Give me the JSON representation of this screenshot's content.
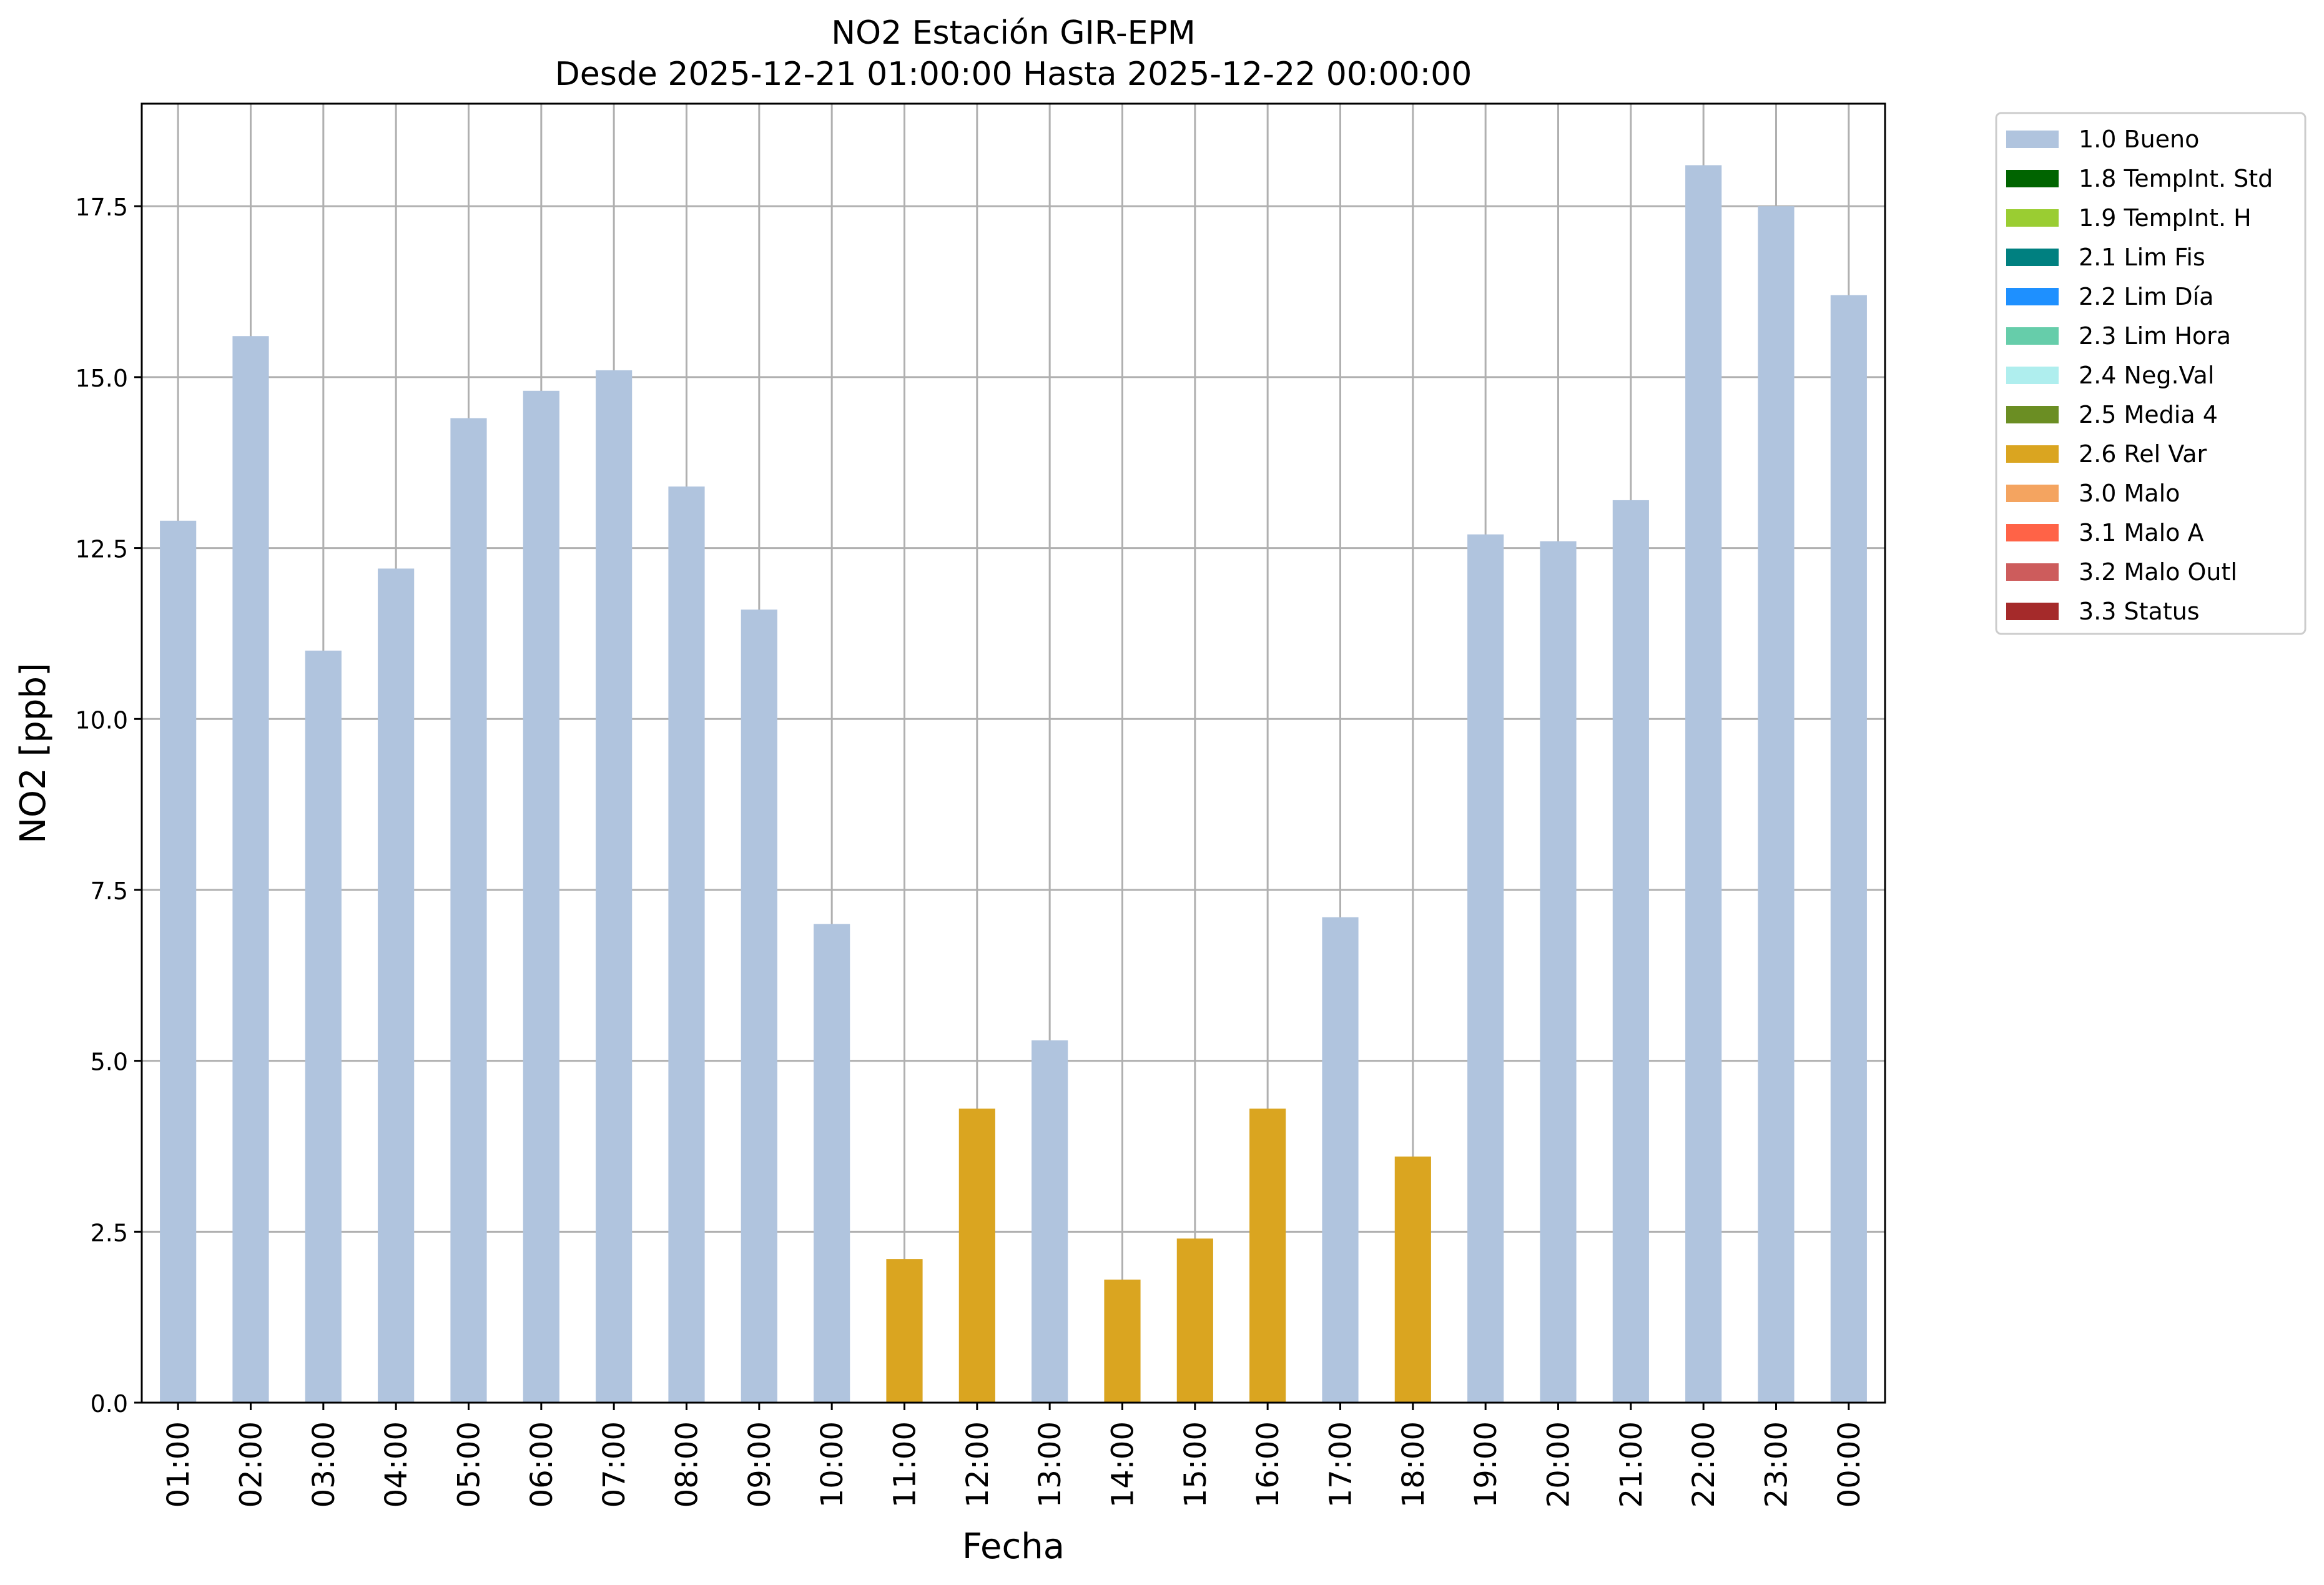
{
  "chart_data": {
    "type": "bar",
    "title": "NO2 Estación GIR-EPM",
    "subtitle": "Desde 2025-12-21 01:00:00 Hasta 2025-12-22 00:00:00",
    "xlabel": "Fecha",
    "ylabel": "NO2 [ppb]",
    "ylim": [
      0,
      19
    ],
    "yticks": [
      0.0,
      2.5,
      5.0,
      7.5,
      10.0,
      12.5,
      15.0,
      17.5
    ],
    "ytick_labels": [
      "0.0",
      "2.5",
      "5.0",
      "7.5",
      "10.0",
      "12.5",
      "15.0",
      "17.5"
    ],
    "grid": true,
    "legend_position": "outside-top-right",
    "categories": [
      "01:00",
      "02:00",
      "03:00",
      "04:00",
      "05:00",
      "06:00",
      "07:00",
      "08:00",
      "09:00",
      "10:00",
      "11:00",
      "12:00",
      "13:00",
      "14:00",
      "15:00",
      "16:00",
      "17:00",
      "18:00",
      "19:00",
      "20:00",
      "21:00",
      "22:00",
      "23:00",
      "00:00"
    ],
    "values": [
      12.9,
      15.6,
      11.0,
      12.2,
      14.4,
      14.8,
      15.1,
      13.4,
      11.6,
      7.0,
      2.1,
      4.3,
      5.3,
      1.8,
      2.4,
      4.3,
      7.1,
      3.6,
      12.7,
      12.6,
      13.2,
      18.1,
      17.5,
      16.2
    ],
    "flags": [
      "1.0 Bueno",
      "1.0 Bueno",
      "1.0 Bueno",
      "1.0 Bueno",
      "1.0 Bueno",
      "1.0 Bueno",
      "1.0 Bueno",
      "1.0 Bueno",
      "1.0 Bueno",
      "1.0 Bueno",
      "2.6 Rel Var",
      "2.6 Rel Var",
      "1.0 Bueno",
      "2.6 Rel Var",
      "2.6 Rel Var",
      "2.6 Rel Var",
      "1.0 Bueno",
      "2.6 Rel Var",
      "1.0 Bueno",
      "1.0 Bueno",
      "1.0 Bueno",
      "1.0 Bueno",
      "1.0 Bueno",
      "1.0 Bueno"
    ],
    "legend": [
      {
        "label": "1.0 Bueno",
        "color": "#b0c4de"
      },
      {
        "label": "1.8 TempInt. Std",
        "color": "#006400"
      },
      {
        "label": "1.9 TempInt. H",
        "color": "#9acd32"
      },
      {
        "label": "2.1 Lim Fis",
        "color": "#008080"
      },
      {
        "label": "2.2 Lim Día",
        "color": "#1e90ff"
      },
      {
        "label": "2.3 Lim Hora",
        "color": "#66cdaa"
      },
      {
        "label": "2.4 Neg.Val",
        "color": "#afeeee"
      },
      {
        "label": "2.5 Media 4",
        "color": "#6b8e23"
      },
      {
        "label": "2.6 Rel Var",
        "color": "#daa520"
      },
      {
        "label": "3.0 Malo",
        "color": "#f4a460"
      },
      {
        "label": "3.1 Malo A",
        "color": "#ff6347"
      },
      {
        "label": "3.2 Malo Outl",
        "color": "#cd5c5c"
      },
      {
        "label": "3.3 Status",
        "color": "#a52a2a"
      }
    ]
  }
}
